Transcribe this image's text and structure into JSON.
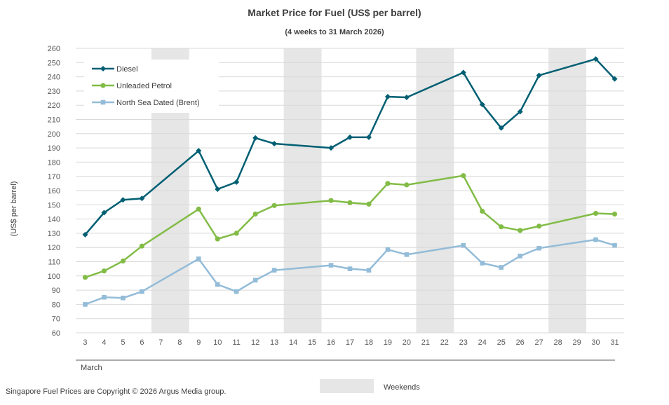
{
  "chart_data": {
    "type": "line",
    "title": "Market Price for Fuel (US$ per barrel)",
    "subtitle": "(4 weeks to 31 March 2026)",
    "ylabel": "(US$ per barrel)",
    "xlabel": "March",
    "ylim": [
      60,
      260
    ],
    "ystep": 10,
    "x": [
      3,
      4,
      5,
      6,
      7,
      8,
      9,
      10,
      11,
      12,
      13,
      14,
      15,
      16,
      17,
      18,
      19,
      20,
      21,
      22,
      23,
      24,
      25,
      26,
      27,
      28,
      29,
      30,
      31
    ],
    "weekends": [
      [
        7,
        8
      ],
      [
        14,
        15
      ],
      [
        21,
        22
      ],
      [
        28,
        29
      ]
    ],
    "series": [
      {
        "name": "Diesel",
        "color": "#005f73",
        "marker": "diamond",
        "points": [
          [
            3,
            129
          ],
          [
            4,
            144.5
          ],
          [
            5,
            153.5
          ],
          [
            6,
            154.5
          ],
          [
            9,
            188
          ],
          [
            10,
            161
          ],
          [
            11,
            166
          ],
          [
            12,
            197
          ],
          [
            13,
            193
          ],
          [
            16,
            190
          ],
          [
            17,
            197.5
          ],
          [
            18,
            197.5
          ],
          [
            19,
            226
          ],
          [
            20,
            225.5
          ],
          [
            23,
            243
          ],
          [
            24,
            220.5
          ],
          [
            25,
            204
          ],
          [
            26,
            215.5
          ],
          [
            27,
            241
          ],
          [
            30,
            252.5
          ],
          [
            31,
            238.5
          ]
        ]
      },
      {
        "name": "Unleaded Petrol",
        "color": "#82bc46",
        "marker": "circle",
        "points": [
          [
            3,
            99
          ],
          [
            4,
            103.5
          ],
          [
            5,
            110.5
          ],
          [
            6,
            121
          ],
          [
            9,
            147
          ],
          [
            10,
            126
          ],
          [
            11,
            130
          ],
          [
            12,
            143.5
          ],
          [
            13,
            149.5
          ],
          [
            16,
            153
          ],
          [
            17,
            151.5
          ],
          [
            18,
            150.5
          ],
          [
            19,
            165
          ],
          [
            20,
            164
          ],
          [
            23,
            170.5
          ],
          [
            24,
            145.5
          ],
          [
            25,
            134.5
          ],
          [
            26,
            132
          ],
          [
            27,
            135
          ],
          [
            30,
            144
          ],
          [
            31,
            143.5
          ]
        ]
      },
      {
        "name": "North Sea Dated (Brent)",
        "color": "#93bcd8",
        "marker": "square",
        "points": [
          [
            3,
            80
          ],
          [
            4,
            85
          ],
          [
            5,
            84.5
          ],
          [
            6,
            89
          ],
          [
            9,
            112
          ],
          [
            10,
            94
          ],
          [
            11,
            89
          ],
          [
            12,
            97
          ],
          [
            13,
            104
          ],
          [
            16,
            107.5
          ],
          [
            17,
            105
          ],
          [
            18,
            104
          ],
          [
            19,
            118.5
          ],
          [
            20,
            115
          ],
          [
            23,
            121.5
          ],
          [
            24,
            109
          ],
          [
            25,
            106
          ],
          [
            26,
            114
          ],
          [
            27,
            119.5
          ],
          [
            30,
            125.5
          ],
          [
            31,
            121.5
          ]
        ]
      }
    ],
    "legend_position": "top-left"
  },
  "footer": {
    "copyright": "Singapore Fuel Prices are Copyright © 2026 Argus Media group.",
    "weekends_label": "Weekends",
    "weekend_color": "#e6e6e6"
  }
}
